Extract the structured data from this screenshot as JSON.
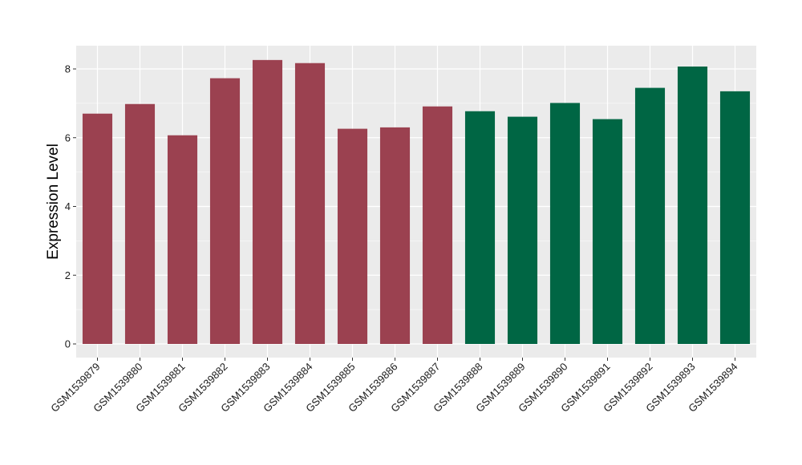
{
  "chart_data": {
    "type": "bar",
    "title": "",
    "xlabel": "",
    "ylabel": "Expression Level",
    "ylim": [
      0,
      8.7
    ],
    "yticks": [
      0,
      2,
      4,
      6,
      8
    ],
    "grid": true,
    "legend": "none",
    "categories": [
      "GSM1539879",
      "GSM1539880",
      "GSM1539881",
      "GSM1539882",
      "GSM1539883",
      "GSM1539884",
      "GSM1539885",
      "GSM1539886",
      "GSM1539887",
      "GSM1539888",
      "GSM1539889",
      "GSM1539890",
      "GSM1539891",
      "GSM1539892",
      "GSM1539893",
      "GSM1539894"
    ],
    "values": [
      6.7,
      6.98,
      6.07,
      7.73,
      8.26,
      8.17,
      6.26,
      6.3,
      6.91,
      6.77,
      6.61,
      7.01,
      6.54,
      7.45,
      8.07,
      7.35
    ],
    "group_sizes": [
      9,
      7
    ],
    "colors": [
      "#9b4150",
      "#006644"
    ],
    "panel_background": "#ebebeb",
    "grid_color": "#ffffff"
  }
}
